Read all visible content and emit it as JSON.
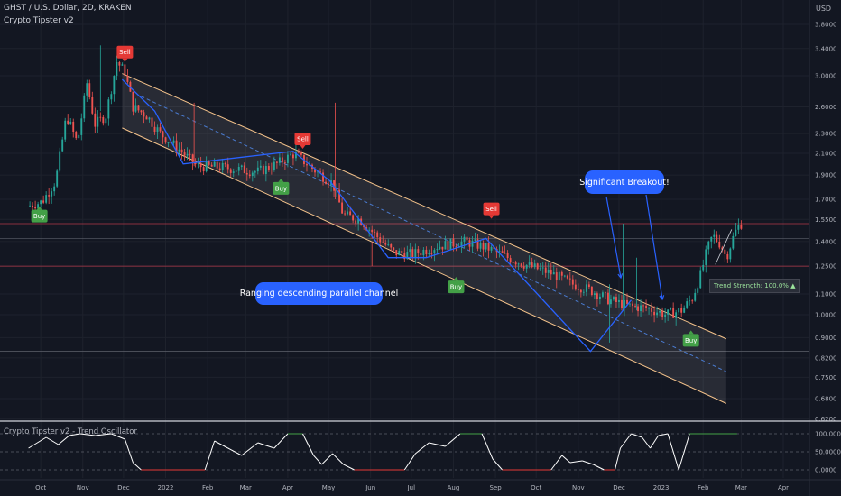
{
  "header": {
    "symbol_line": "GHST / U.S. Dollar, 2D, KRAKEN",
    "indicator": "Crypto Tipster v2",
    "currency": "USD"
  },
  "oscillator": {
    "title": "Crypto Tipster v2 - Trend Oscillator",
    "ticks": [
      "100.0000",
      "50.0000",
      "0.0000"
    ]
  },
  "annotations": {
    "channel_note": "Ranging descending parallel channel",
    "breakout_note": "Significant Breakout!",
    "trend_strength": "Trend Strength: 100.0% ▲"
  },
  "signals": [
    {
      "label": "Sell",
      "type": "sell",
      "date": "2021-12-02",
      "price": 3.25
    },
    {
      "label": "Sell",
      "type": "sell",
      "date": "2022-04-12",
      "price": 2.18
    },
    {
      "label": "Sell",
      "type": "sell",
      "date": "2022-08-29",
      "price": 1.58
    },
    {
      "label": "Buy",
      "type": "buy",
      "date": "2021-09-30",
      "price": 1.62
    },
    {
      "label": "Buy",
      "type": "buy",
      "date": "2022-03-27",
      "price": 1.84
    },
    {
      "label": "Buy",
      "type": "buy",
      "date": "2022-08-03",
      "price": 1.17
    },
    {
      "label": "Buy",
      "type": "buy",
      "date": "2023-01-23",
      "price": 0.915
    }
  ],
  "colors": {
    "background": "#131722",
    "up": "#26a69a",
    "down": "#ef5350",
    "channel": "#f5c38b",
    "zigzag": "#2962ff",
    "buy": "#43a047",
    "sell": "#e53935",
    "oscillator_line": "#ffffff"
  },
  "chart_data": {
    "type": "candlestick",
    "title": "GHST / U.S. Dollar, 2D, KRAKEN",
    "y_scale": "log",
    "ylim": [
      0.6,
      4.2
    ],
    "y_ticks": [
      "3.8000",
      "3.4000",
      "3.0000",
      "2.6000",
      "2.3000",
      "2.1000",
      "1.9000",
      "1.7000",
      "1.5500",
      "1.4000",
      "1.2500",
      "1.1000",
      "1.0000",
      "0.9000",
      "0.8200",
      "0.7500",
      "0.6800",
      "0.6200"
    ],
    "x_ticks": [
      "Oct",
      "Nov",
      "Dec",
      "2022",
      "Feb",
      "Mar",
      "Apr",
      "May",
      "Jun",
      "Jul",
      "Aug",
      "Sep",
      "Oct",
      "Nov",
      "Dec",
      "2023",
      "Feb",
      "Mar",
      "Apr"
    ],
    "price_path": [
      [
        "2021-09-22",
        1.65
      ],
      [
        "2021-10-02",
        1.68
      ],
      [
        "2021-10-12",
        1.85
      ],
      [
        "2021-10-20",
        2.5
      ],
      [
        "2021-10-28",
        2.2
      ],
      [
        "2021-11-04",
        2.9
      ],
      [
        "2021-11-10",
        2.4
      ],
      [
        "2021-11-18",
        2.5
      ],
      [
        "2021-11-26",
        3.2
      ],
      [
        "2021-12-02",
        3.05
      ],
      [
        "2021-12-08",
        2.6
      ],
      [
        "2021-12-18",
        2.5
      ],
      [
        "2021-12-28",
        2.3
      ],
      [
        "2022-01-10",
        2.15
      ],
      [
        "2022-01-24",
        1.98
      ],
      [
        "2022-02-10",
        1.97
      ],
      [
        "2022-02-24",
        1.95
      ],
      [
        "2022-03-10",
        1.93
      ],
      [
        "2022-03-24",
        2.0
      ],
      [
        "2022-04-06",
        2.1
      ],
      [
        "2022-04-20",
        1.95
      ],
      [
        "2022-05-04",
        1.83
      ],
      [
        "2022-05-12",
        1.58
      ],
      [
        "2022-05-24",
        1.55
      ],
      [
        "2022-06-06",
        1.43
      ],
      [
        "2022-06-18",
        1.33
      ],
      [
        "2022-07-02",
        1.32
      ],
      [
        "2022-07-20",
        1.37
      ],
      [
        "2022-08-10",
        1.4
      ],
      [
        "2022-08-26",
        1.36
      ],
      [
        "2022-09-10",
        1.3
      ],
      [
        "2022-09-26",
        1.25
      ],
      [
        "2022-10-12",
        1.21
      ],
      [
        "2022-10-28",
        1.15
      ],
      [
        "2022-11-10",
        1.12
      ],
      [
        "2022-11-24",
        1.07
      ],
      [
        "2022-12-08",
        1.04
      ],
      [
        "2022-12-22",
        1.03
      ],
      [
        "2023-01-05",
        1.0
      ],
      [
        "2023-01-16",
        1.02
      ],
      [
        "2023-01-24",
        1.08
      ],
      [
        "2023-01-30",
        1.2
      ],
      [
        "2023-02-04",
        1.35
      ],
      [
        "2023-02-08",
        1.44
      ],
      [
        "2023-02-14",
        1.38
      ],
      [
        "2023-02-18",
        1.3
      ],
      [
        "2023-02-24",
        1.45
      ],
      [
        "2023-02-28",
        1.52
      ]
    ],
    "channel": {
      "upper": [
        [
          "2021-11-30",
          3.03
        ],
        [
          "2023-02-18",
          0.895
        ]
      ],
      "lower": [
        [
          "2021-11-30",
          2.36
        ],
        [
          "2023-02-18",
          0.665
        ]
      ],
      "mid": [
        [
          "2021-12-14",
          2.73
        ],
        [
          "2023-02-18",
          0.77
        ]
      ]
    },
    "zigzag": [
      [
        "2021-11-30",
        2.95
      ],
      [
        "2021-12-24",
        2.55
      ],
      [
        "2022-01-14",
        2.0
      ],
      [
        "2022-04-05",
        2.12
      ],
      [
        "2022-05-02",
        1.85
      ],
      [
        "2022-06-14",
        1.3
      ],
      [
        "2022-07-12",
        1.3
      ],
      [
        "2022-08-25",
        1.42
      ],
      [
        "2022-11-10",
        0.845
      ],
      [
        "2022-12-10",
        1.07
      ]
    ],
    "horizontal_levels": [
      1.52,
      1.25,
      0.845
    ],
    "oscillator": {
      "ylim": [
        0,
        100
      ],
      "levels": [
        0,
        50,
        100
      ],
      "path": [
        [
          "2021-09-22",
          60
        ],
        [
          "2021-10-05",
          90
        ],
        [
          "2021-10-14",
          70
        ],
        [
          "2021-10-22",
          95
        ],
        [
          "2021-10-30",
          100
        ],
        [
          "2021-11-10",
          95
        ],
        [
          "2021-11-22",
          100
        ],
        [
          "2021-12-02",
          85
        ],
        [
          "2021-12-08",
          20
        ],
        [
          "2021-12-14",
          0
        ],
        [
          "2022-01-30",
          0
        ],
        [
          "2022-02-06",
          80
        ],
        [
          "2022-02-16",
          60
        ],
        [
          "2022-02-26",
          40
        ],
        [
          "2022-03-10",
          75
        ],
        [
          "2022-03-22",
          60
        ],
        [
          "2022-04-01",
          100
        ],
        [
          "2022-04-12",
          100
        ],
        [
          "2022-04-20",
          40
        ],
        [
          "2022-04-26",
          15
        ],
        [
          "2022-05-04",
          45
        ],
        [
          "2022-05-12",
          15
        ],
        [
          "2022-05-20",
          0
        ],
        [
          "2022-06-26",
          0
        ],
        [
          "2022-07-04",
          45
        ],
        [
          "2022-07-14",
          75
        ],
        [
          "2022-07-26",
          65
        ],
        [
          "2022-08-06",
          100
        ],
        [
          "2022-08-22",
          100
        ],
        [
          "2022-08-30",
          30
        ],
        [
          "2022-09-06",
          0
        ],
        [
          "2022-10-12",
          0
        ],
        [
          "2022-10-20",
          40
        ],
        [
          "2022-10-26",
          20
        ],
        [
          "2022-11-04",
          25
        ],
        [
          "2022-11-12",
          15
        ],
        [
          "2022-11-20",
          0
        ],
        [
          "2022-11-28",
          0
        ],
        [
          "2022-12-02",
          60
        ],
        [
          "2022-12-10",
          100
        ],
        [
          "2022-12-18",
          90
        ],
        [
          "2022-12-24",
          60
        ],
        [
          "2022-12-30",
          95
        ],
        [
          "2023-01-06",
          100
        ],
        [
          "2023-01-14",
          0
        ],
        [
          "2023-01-22",
          100
        ],
        [
          "2023-02-26",
          100
        ]
      ]
    }
  }
}
